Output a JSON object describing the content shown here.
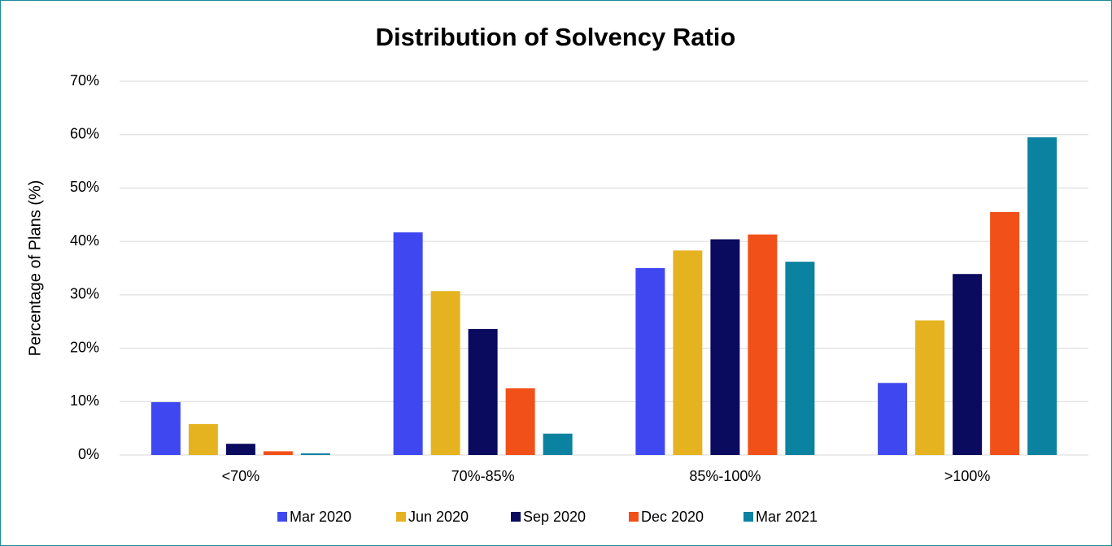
{
  "chart_data": {
    "type": "bar",
    "title": "Distribution of Solvency Ratio",
    "y_label": "Percentage of Plans (%)",
    "categories": [
      "<70%",
      "70%-85%",
      "85%-100%",
      ">100%"
    ],
    "series": [
      {
        "name": "Mar 2020",
        "color": "#3f48f0",
        "values": [
          9.9,
          41.7,
          35.0,
          13.5
        ]
      },
      {
        "name": "Jun 2020",
        "color": "#e6b320",
        "values": [
          5.8,
          30.7,
          38.3,
          25.2
        ]
      },
      {
        "name": "Sep 2020",
        "color": "#0a0a5e",
        "values": [
          2.1,
          23.6,
          40.4,
          33.9
        ]
      },
      {
        "name": "Dec 2020",
        "color": "#f25019",
        "values": [
          0.7,
          12.5,
          41.3,
          45.5
        ]
      },
      {
        "name": "Mar 2021",
        "color": "#0a82a0",
        "values": [
          0.3,
          4.0,
          36.2,
          59.5
        ]
      }
    ],
    "ylim": [
      0,
      70
    ],
    "yticks": [
      {
        "value": 0,
        "label": "0%"
      },
      {
        "value": 10,
        "label": "10%"
      },
      {
        "value": 20,
        "label": "20%"
      },
      {
        "value": 30,
        "label": "30%"
      },
      {
        "value": 40,
        "label": "40%"
      },
      {
        "value": 50,
        "label": "50%"
      },
      {
        "value": 60,
        "label": "60%"
      },
      {
        "value": 70,
        "label": "70%"
      }
    ],
    "grid": true,
    "legend": "bottom"
  }
}
